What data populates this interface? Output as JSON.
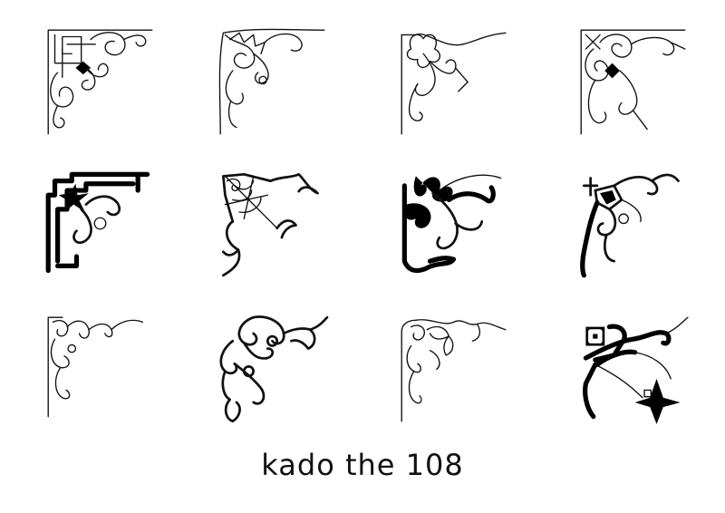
{
  "caption": "kado the 108",
  "ornaments": [
    {
      "row": 1,
      "col": 1,
      "style": "thin-knotwork-swirl"
    },
    {
      "row": 1,
      "col": 2,
      "style": "thin-leaf-vine"
    },
    {
      "row": 1,
      "col": 3,
      "style": "thin-flower-ribbon"
    },
    {
      "row": 1,
      "col": 4,
      "style": "thin-filigree-spiral"
    },
    {
      "row": 2,
      "col": 1,
      "style": "bold-geometric-star"
    },
    {
      "row": 2,
      "col": 2,
      "style": "gothic-spiderweb"
    },
    {
      "row": 2,
      "col": 3,
      "style": "bold-fleur-scroll"
    },
    {
      "row": 2,
      "col": 4,
      "style": "bold-cross-vine"
    },
    {
      "row": 3,
      "col": 1,
      "style": "thin-curl-scroll"
    },
    {
      "row": 3,
      "col": 2,
      "style": "celtic-spiral-leaf"
    },
    {
      "row": 3,
      "col": 3,
      "style": "thin-leafy-vine"
    },
    {
      "row": 3,
      "col": 4,
      "style": "bold-modern-diamond"
    }
  ]
}
